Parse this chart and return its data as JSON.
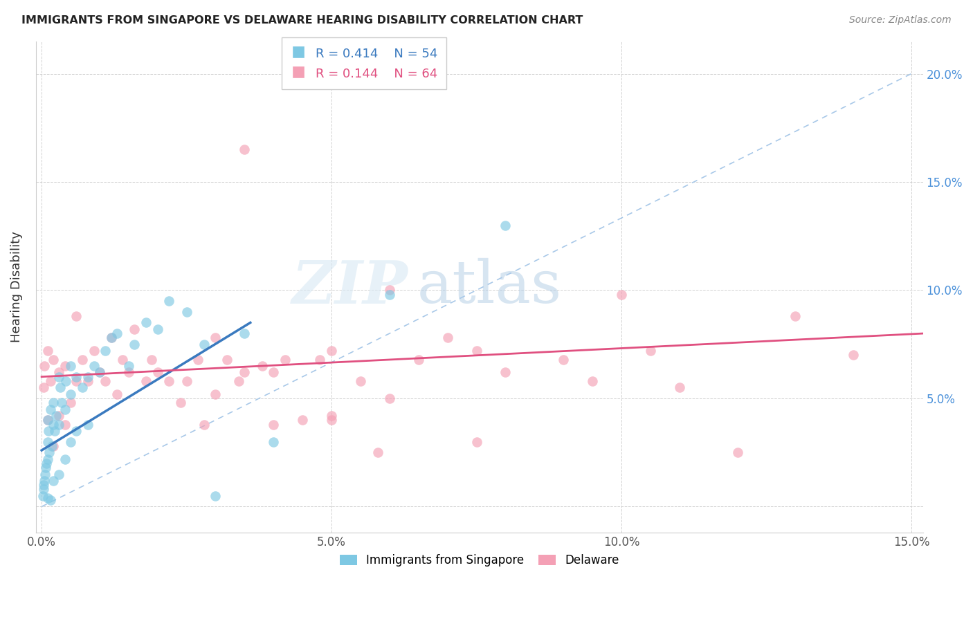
{
  "title": "IMMIGRANTS FROM SINGAPORE VS DELAWARE HEARING DISABILITY CORRELATION CHART",
  "source": "Source: ZipAtlas.com",
  "xlabel_ticks": [
    "0.0%",
    "5.0%",
    "10.0%",
    "15.0%"
  ],
  "xlabel_vals": [
    0.0,
    0.05,
    0.1,
    0.15
  ],
  "ylabel_vals": [
    0.0,
    0.05,
    0.1,
    0.15,
    0.2
  ],
  "xmin": -0.001,
  "xmax": 0.152,
  "ymin": -0.012,
  "ymax": 0.215,
  "legend_r1": "R = 0.414",
  "legend_n1": "N = 54",
  "legend_r2": "R = 0.144",
  "legend_n2": "N = 64",
  "color_blue": "#7ec8e3",
  "color_pink": "#f4a0b5",
  "color_blue_line": "#3a7abf",
  "color_pink_line": "#e05080",
  "color_diag_line": "#a8c8e8",
  "ylabel": "Hearing Disability",
  "watermark_zip": "ZIP",
  "watermark_atlas": "atlas",
  "sg_points_x": [
    0.0002,
    0.0003,
    0.0004,
    0.0005,
    0.0006,
    0.0007,
    0.0008,
    0.001,
    0.001,
    0.001,
    0.001,
    0.0012,
    0.0013,
    0.0015,
    0.0015,
    0.0018,
    0.002,
    0.002,
    0.002,
    0.0022,
    0.0025,
    0.003,
    0.003,
    0.003,
    0.0032,
    0.0035,
    0.004,
    0.004,
    0.0042,
    0.005,
    0.005,
    0.005,
    0.006,
    0.006,
    0.007,
    0.008,
    0.008,
    0.009,
    0.01,
    0.011,
    0.012,
    0.013,
    0.015,
    0.016,
    0.018,
    0.02,
    0.022,
    0.025,
    0.028,
    0.03,
    0.035,
    0.04,
    0.06,
    0.08
  ],
  "sg_points_y": [
    0.005,
    0.008,
    0.01,
    0.012,
    0.015,
    0.018,
    0.02,
    0.004,
    0.022,
    0.03,
    0.04,
    0.035,
    0.025,
    0.045,
    0.003,
    0.028,
    0.012,
    0.038,
    0.048,
    0.035,
    0.042,
    0.015,
    0.038,
    0.06,
    0.055,
    0.048,
    0.022,
    0.045,
    0.058,
    0.03,
    0.052,
    0.065,
    0.035,
    0.06,
    0.055,
    0.06,
    0.038,
    0.065,
    0.062,
    0.072,
    0.078,
    0.08,
    0.065,
    0.075,
    0.085,
    0.082,
    0.095,
    0.09,
    0.075,
    0.005,
    0.08,
    0.03,
    0.098,
    0.13
  ],
  "de_points_x": [
    0.0003,
    0.0005,
    0.001,
    0.001,
    0.0015,
    0.002,
    0.002,
    0.003,
    0.003,
    0.004,
    0.004,
    0.005,
    0.006,
    0.006,
    0.007,
    0.008,
    0.009,
    0.01,
    0.011,
    0.012,
    0.013,
    0.014,
    0.015,
    0.016,
    0.018,
    0.019,
    0.02,
    0.022,
    0.024,
    0.025,
    0.027,
    0.028,
    0.03,
    0.03,
    0.032,
    0.034,
    0.035,
    0.038,
    0.04,
    0.04,
    0.042,
    0.045,
    0.048,
    0.05,
    0.05,
    0.055,
    0.058,
    0.06,
    0.065,
    0.07,
    0.075,
    0.08,
    0.09,
    0.095,
    0.1,
    0.105,
    0.11,
    0.12,
    0.13,
    0.14,
    0.035,
    0.05,
    0.06,
    0.075
  ],
  "de_points_y": [
    0.055,
    0.065,
    0.04,
    0.072,
    0.058,
    0.028,
    0.068,
    0.042,
    0.062,
    0.038,
    0.065,
    0.048,
    0.058,
    0.088,
    0.068,
    0.058,
    0.072,
    0.062,
    0.058,
    0.078,
    0.052,
    0.068,
    0.062,
    0.082,
    0.058,
    0.068,
    0.062,
    0.058,
    0.048,
    0.058,
    0.068,
    0.038,
    0.052,
    0.078,
    0.068,
    0.058,
    0.062,
    0.065,
    0.062,
    0.038,
    0.068,
    0.04,
    0.068,
    0.042,
    0.072,
    0.058,
    0.025,
    0.05,
    0.068,
    0.078,
    0.072,
    0.062,
    0.068,
    0.058,
    0.098,
    0.072,
    0.055,
    0.025,
    0.088,
    0.07,
    0.165,
    0.04,
    0.1,
    0.03
  ],
  "blue_line_x": [
    0.0,
    0.036
  ],
  "blue_line_y": [
    0.026,
    0.085
  ],
  "pink_line_x": [
    0.0,
    0.152
  ],
  "pink_line_y": [
    0.06,
    0.08
  ]
}
